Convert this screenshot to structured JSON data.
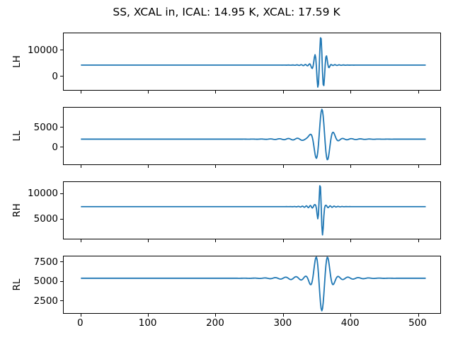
{
  "chart_data": {
    "type": "line",
    "title": "SS, XCAL in, ICAL: 14.95 K, XCAL: 17.59 K",
    "line_color": "#1f77b4",
    "axis_color": "#000000",
    "background": "#ffffff",
    "legend": "none",
    "grid": false,
    "x": {
      "lim": [
        -25.5,
        532.5
      ],
      "ticks": [
        0,
        100,
        200,
        300,
        400,
        500
      ],
      "n_samples": 512
    },
    "subplots": [
      {
        "label": "LH",
        "ylim": [
          -5200,
          16450
        ],
        "yticks": [
          0,
          10000
        ],
        "baseline": 4300,
        "peak": 15600,
        "trough": -4500,
        "burst_center": 355,
        "components": [
          {
            "amp": 11300,
            "center": 355,
            "sigma": 8,
            "freq": 0.115,
            "phase": -0.3
          },
          {
            "amp": 420,
            "center": 352,
            "sigma": 26,
            "freq": 0.16,
            "phase": 0.6
          }
        ]
      },
      {
        "label": "LL",
        "ylim": [
          -4310,
          10000
        ],
        "yticks": [
          0,
          5000
        ],
        "baseline": 2050,
        "peak": 9650,
        "trough": -2870,
        "burst_center": 357,
        "components": [
          {
            "amp": 7600,
            "center": 357,
            "sigma": 13.5,
            "freq": 0.056,
            "phase": 0
          },
          {
            "amp": 300,
            "center": 350,
            "sigma": 55,
            "freq": 0.075,
            "phase": 1.2
          }
        ]
      },
      {
        "label": "RH",
        "ylim": [
          1080,
          12300
        ],
        "yticks": [
          5000,
          10000
        ],
        "baseline": 7430,
        "peak": 12330,
        "trough": 1640,
        "burst_center": 356,
        "components": [
          {
            "amp": 4900,
            "center": 354.5,
            "sigma": 4.5,
            "freq": 0.135,
            "phase": 0
          },
          {
            "amp": -3300,
            "center": 358.3,
            "sigma": 2.0,
            "freq": 0,
            "phase": 0
          },
          {
            "amp": 320,
            "center": 352,
            "sigma": 22,
            "freq": 0.17,
            "phase": 0.3
          }
        ]
      },
      {
        "label": "RL",
        "ylim": [
          930,
          8200
        ],
        "yticks": [
          2500,
          5000,
          7500
        ],
        "baseline": 5400,
        "peak": 7740,
        "trough": 1500,
        "burst_center": 357,
        "components": [
          {
            "amp": 3900,
            "center": 357,
            "sigma": 13,
            "freq": 0.054,
            "phase": 3.1416
          },
          {
            "amp": 280,
            "center": 350,
            "sigma": 55,
            "freq": 0.065,
            "phase": 0.2
          }
        ]
      }
    ]
  }
}
